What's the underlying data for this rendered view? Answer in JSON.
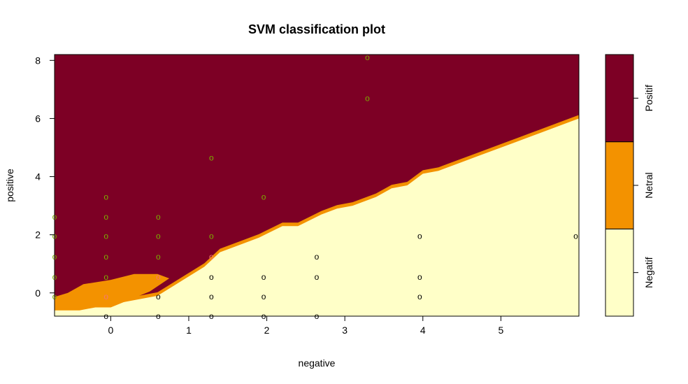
{
  "chart_data": {
    "type": "scatter",
    "title": "SVM classification plot",
    "xlabel": "negative",
    "ylabel": "positive",
    "xlim": [
      -0.72,
      6.0
    ],
    "ylim": [
      -0.8,
      8.2
    ],
    "x_ticks": [
      "0",
      "1",
      "2",
      "3",
      "4",
      "5"
    ],
    "y_ticks": [
      "0",
      "2",
      "4",
      "6",
      "8"
    ],
    "point_symbol": "o",
    "legend": {
      "placement": "right",
      "entries": [
        {
          "label": "Negatif",
          "color": "#ffffc8"
        },
        {
          "label": "Netral",
          "color": "#f39200"
        },
        {
          "label": "Positif",
          "color": "#7d0025"
        }
      ]
    },
    "regions": {
      "colors": {
        "Negatif": "#ffffc8",
        "Netral": "#f39200",
        "Positif": "#7d0025"
      }
    },
    "point_colors": {
      "Negatif": "#000000",
      "Netral": "#f8766d",
      "Positif": "#7cae00"
    },
    "series": [
      {
        "name": "Negatif",
        "points": [
          [
            -0.06,
            -0.8
          ],
          [
            0.61,
            -0.8
          ],
          [
            1.29,
            -0.8
          ],
          [
            1.96,
            -0.8
          ],
          [
            2.64,
            -0.8
          ],
          [
            0.61,
            -0.13
          ],
          [
            1.29,
            -0.13
          ],
          [
            1.96,
            -0.13
          ],
          [
            3.96,
            -0.13
          ],
          [
            1.29,
            0.55
          ],
          [
            1.96,
            0.55
          ],
          [
            2.64,
            0.55
          ],
          [
            3.96,
            0.55
          ],
          [
            2.64,
            1.25
          ],
          [
            3.96,
            1.95
          ],
          [
            5.96,
            1.95
          ]
        ]
      },
      {
        "name": "Netral",
        "points": [
          [
            -0.06,
            -0.13
          ],
          [
            0.61,
            0.55
          ],
          [
            1.29,
            1.25
          ]
        ]
      },
      {
        "name": "Positif",
        "points": [
          [
            -0.72,
            -0.13
          ],
          [
            -0.72,
            0.55
          ],
          [
            -0.72,
            1.25
          ],
          [
            -0.72,
            1.95
          ],
          [
            -0.72,
            2.62
          ],
          [
            -0.06,
            0.55
          ],
          [
            -0.06,
            1.25
          ],
          [
            -0.06,
            1.95
          ],
          [
            -0.06,
            2.62
          ],
          [
            -0.06,
            3.3
          ],
          [
            0.61,
            1.25
          ],
          [
            0.61,
            1.95
          ],
          [
            0.61,
            2.62
          ],
          [
            1.29,
            1.95
          ],
          [
            1.29,
            4.65
          ],
          [
            1.96,
            3.3
          ],
          [
            3.29,
            6.7
          ],
          [
            3.29,
            8.1
          ]
        ]
      }
    ]
  }
}
